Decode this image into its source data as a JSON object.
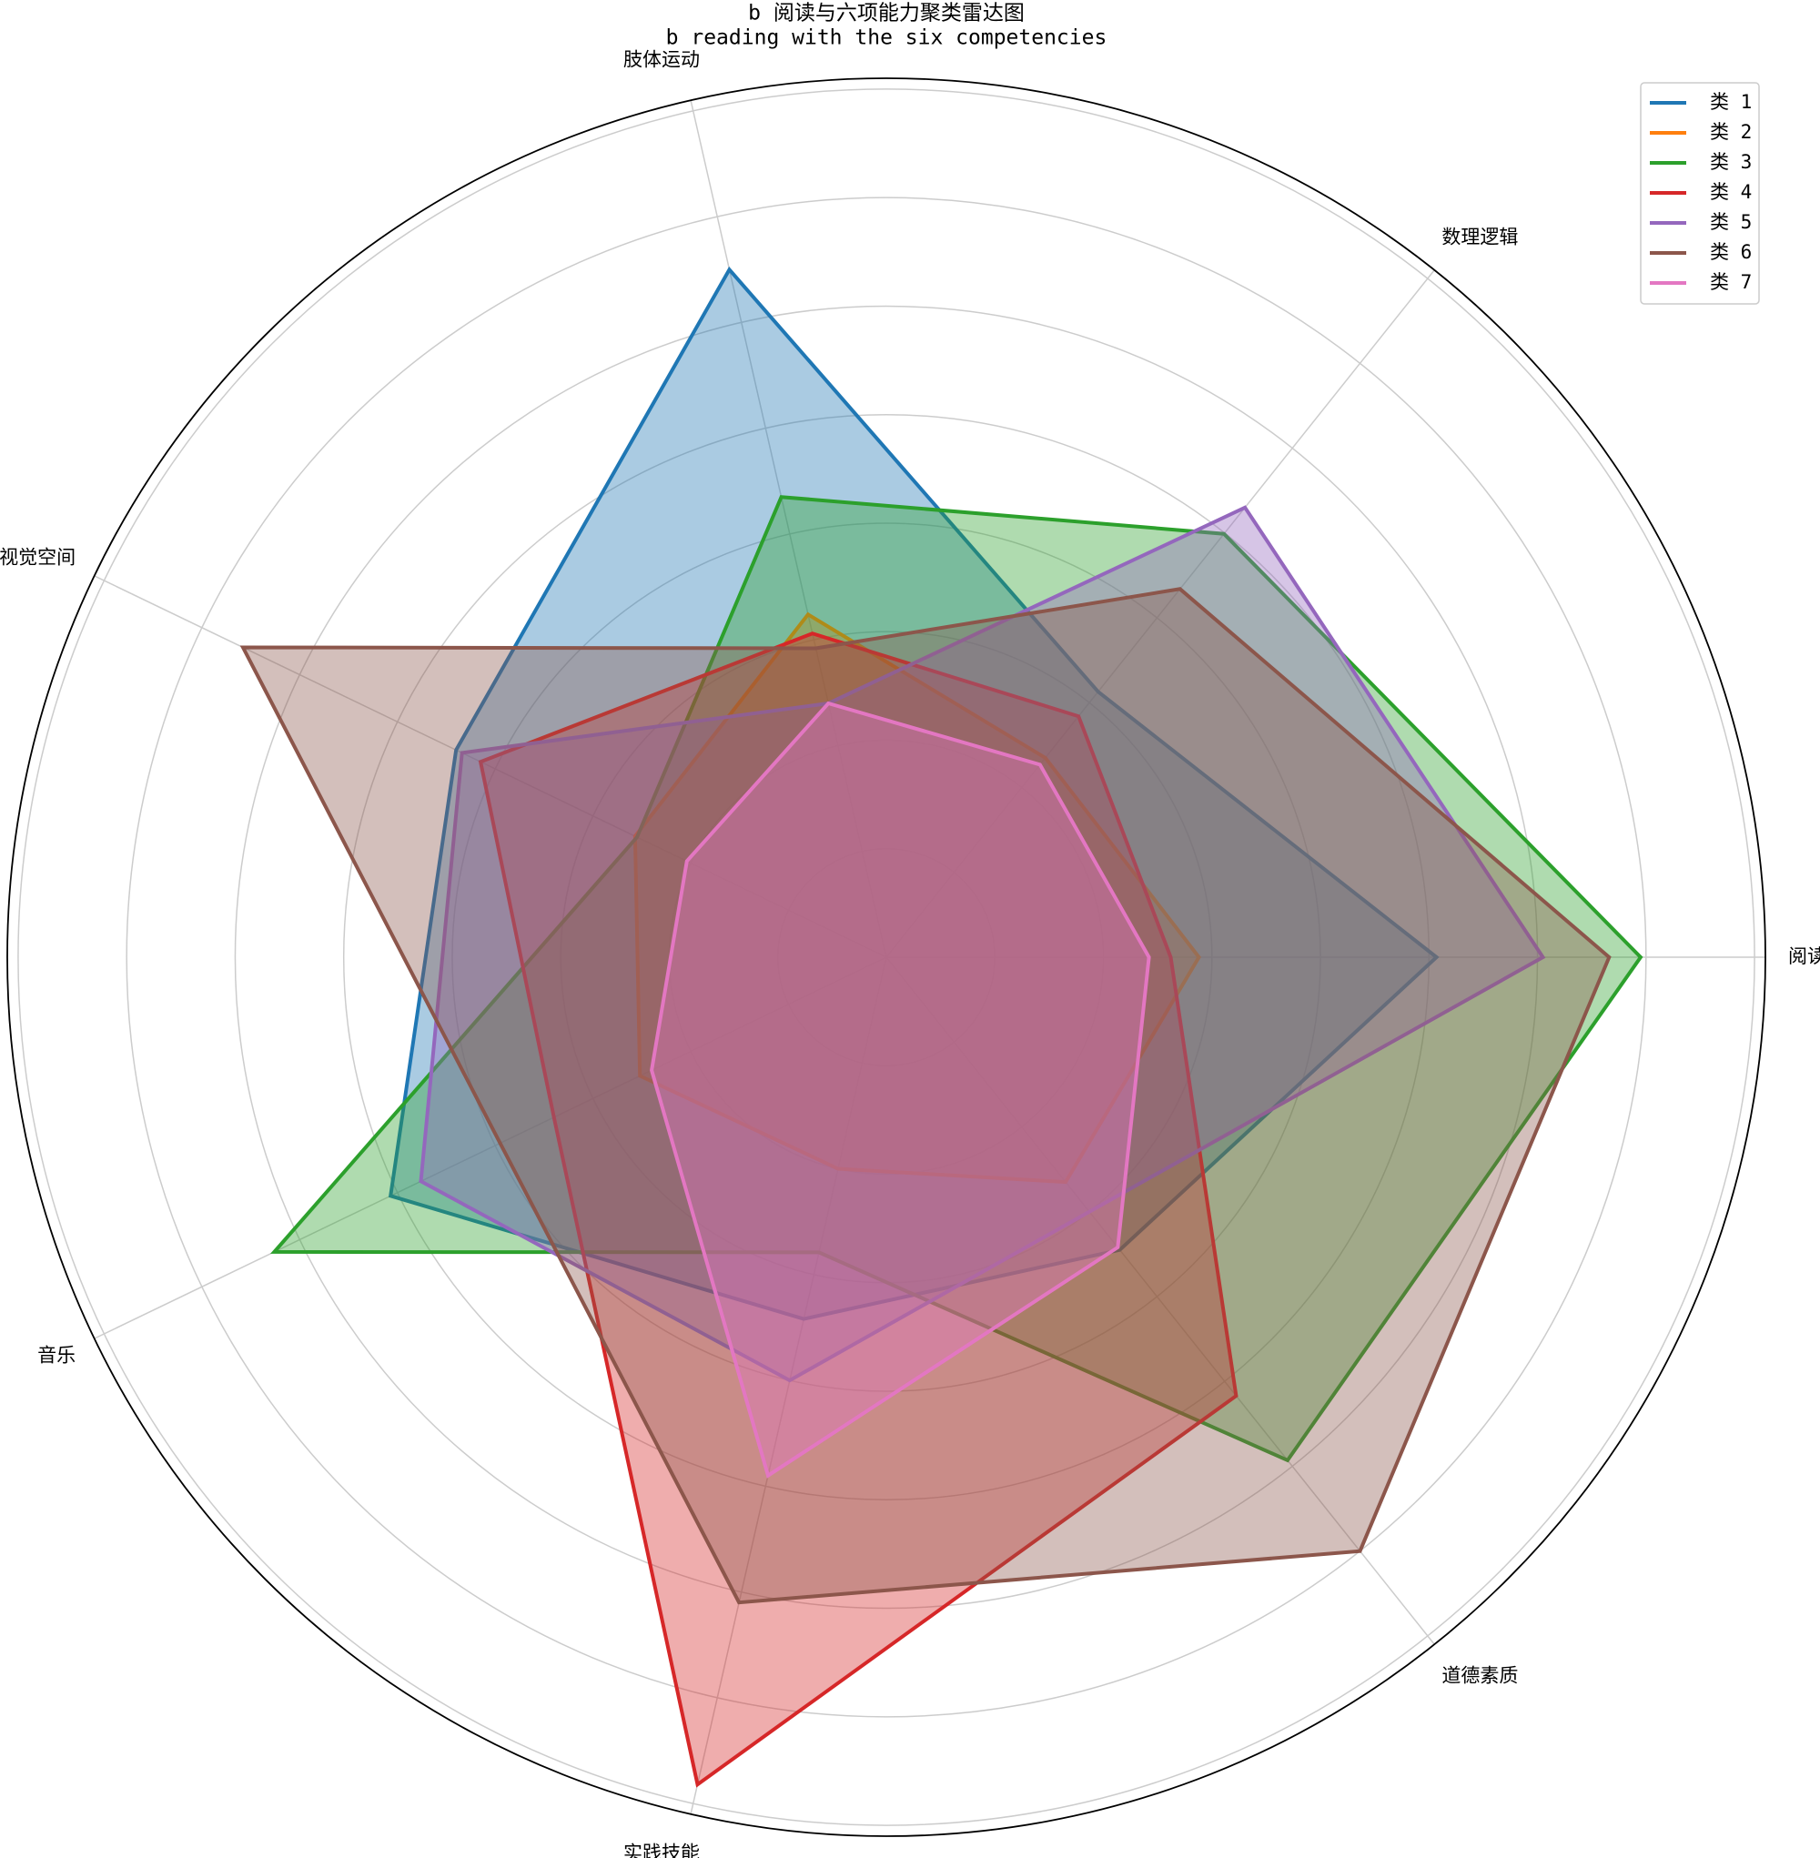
{
  "chart_data": {
    "type": "radar",
    "title": "b 阅读与六项能力聚类雷达图",
    "subtitle": "b reading with the six competencies",
    "categories": [
      "阅读",
      "数理逻辑",
      "肢体运动",
      "视觉空间",
      "音乐",
      "实践技能",
      "道德素质"
    ],
    "series": [
      {
        "name": "类 1",
        "color": "#1f77b4",
        "values": [
          5.07,
          3.13,
          6.5,
          4.4,
          5.07,
          3.42,
          3.45
        ]
      },
      {
        "name": "类 2",
        "color": "#ff7f0e",
        "values": [
          2.88,
          2.35,
          3.24,
          2.57,
          2.52,
          2.0,
          2.65
        ]
      },
      {
        "name": "类 3",
        "color": "#2ca02c",
        "values": [
          6.95,
          4.99,
          4.35,
          2.55,
          6.26,
          2.79,
          5.93
        ]
      },
      {
        "name": "类 4",
        "color": "#d62728",
        "values": [
          2.62,
          2.84,
          3.06,
          4.15,
          3.4,
          7.82,
          5.17
        ]
      },
      {
        "name": "类 5",
        "color": "#9467bd",
        "values": [
          6.05,
          5.3,
          2.4,
          4.34,
          4.76,
          4.0,
          3.0
        ]
      },
      {
        "name": "类 6",
        "color": "#8c564b",
        "values": [
          6.66,
          4.34,
          2.92,
          6.58,
          3.95,
          6.1,
          7.0
        ]
      },
      {
        "name": "类 7",
        "color": "#e377c2",
        "values": [
          2.42,
          2.27,
          2.4,
          2.04,
          2.4,
          4.9,
          3.42
        ]
      }
    ],
    "rlim": [
      0,
      8.1
    ],
    "rticks": [
      1,
      2,
      3,
      4,
      5,
      6,
      7,
      8
    ],
    "grid": true,
    "legend": "upper right"
  }
}
